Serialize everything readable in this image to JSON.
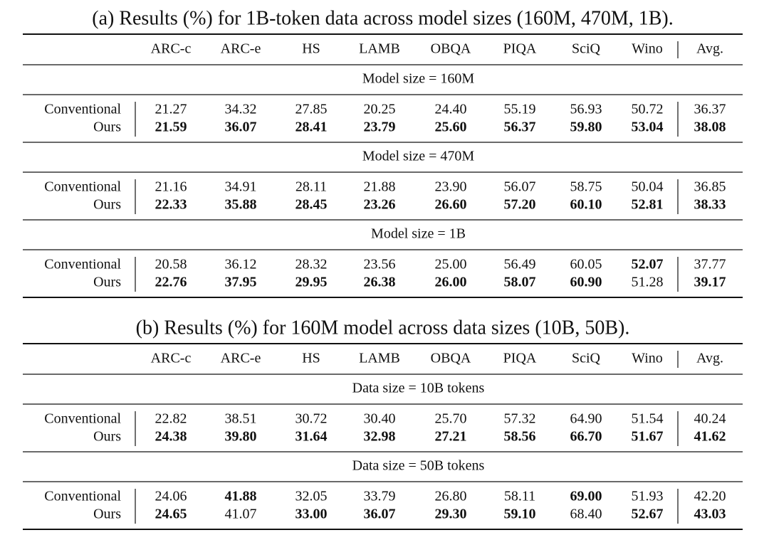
{
  "tables": [
    {
      "caption": "(a) Results (%) for 1B-token data across model sizes (160M, 470M, 1B).",
      "columns": [
        "ARC-c",
        "ARC-e",
        "HS",
        "LAMB",
        "OBQA",
        "PIQA",
        "SciQ",
        "Wino",
        "Avg."
      ],
      "sections": [
        {
          "label": "Model size = 160M",
          "rows": [
            {
              "label": "Conventional",
              "values": [
                "21.27",
                "34.32",
                "27.85",
                "20.25",
                "24.40",
                "55.19",
                "56.93",
                "50.72",
                "36.37"
              ],
              "bold": [
                false,
                false,
                false,
                false,
                false,
                false,
                false,
                false,
                false
              ]
            },
            {
              "label": "Ours",
              "values": [
                "21.59",
                "36.07",
                "28.41",
                "23.79",
                "25.60",
                "56.37",
                "59.80",
                "53.04",
                "38.08"
              ],
              "bold": [
                true,
                true,
                true,
                true,
                true,
                true,
                true,
                true,
                true
              ]
            }
          ]
        },
        {
          "label": "Model size = 470M",
          "rows": [
            {
              "label": "Conventional",
              "values": [
                "21.16",
                "34.91",
                "28.11",
                "21.88",
                "23.90",
                "56.07",
                "58.75",
                "50.04",
                "36.85"
              ],
              "bold": [
                false,
                false,
                false,
                false,
                false,
                false,
                false,
                false,
                false
              ]
            },
            {
              "label": "Ours",
              "values": [
                "22.33",
                "35.88",
                "28.45",
                "23.26",
                "26.60",
                "57.20",
                "60.10",
                "52.81",
                "38.33"
              ],
              "bold": [
                true,
                true,
                true,
                true,
                true,
                true,
                true,
                true,
                true
              ]
            }
          ]
        },
        {
          "label": "Model size = 1B",
          "rows": [
            {
              "label": "Conventional",
              "values": [
                "20.58",
                "36.12",
                "28.32",
                "23.56",
                "25.00",
                "56.49",
                "60.05",
                "52.07",
                "37.77"
              ],
              "bold": [
                false,
                false,
                false,
                false,
                false,
                false,
                false,
                true,
                false
              ]
            },
            {
              "label": "Ours",
              "values": [
                "22.76",
                "37.95",
                "29.95",
                "26.38",
                "26.00",
                "58.07",
                "60.90",
                "51.28",
                "39.17"
              ],
              "bold": [
                true,
                true,
                true,
                true,
                true,
                true,
                true,
                false,
                true
              ]
            }
          ]
        }
      ]
    },
    {
      "caption": "(b) Results (%) for 160M model across data sizes (10B, 50B).",
      "columns": [
        "ARC-c",
        "ARC-e",
        "HS",
        "LAMB",
        "OBQA",
        "PIQA",
        "SciQ",
        "Wino",
        "Avg."
      ],
      "sections": [
        {
          "label": "Data size = 10B tokens",
          "rows": [
            {
              "label": "Conventional",
              "values": [
                "22.82",
                "38.51",
                "30.72",
                "30.40",
                "25.70",
                "57.32",
                "64.90",
                "51.54",
                "40.24"
              ],
              "bold": [
                false,
                false,
                false,
                false,
                false,
                false,
                false,
                false,
                false
              ]
            },
            {
              "label": "Ours",
              "values": [
                "24.38",
                "39.80",
                "31.64",
                "32.98",
                "27.21",
                "58.56",
                "66.70",
                "51.67",
                "41.62"
              ],
              "bold": [
                true,
                true,
                true,
                true,
                true,
                true,
                true,
                true,
                true
              ]
            }
          ]
        },
        {
          "label": "Data size = 50B tokens",
          "rows": [
            {
              "label": "Conventional",
              "values": [
                "24.06",
                "41.88",
                "32.05",
                "33.79",
                "26.80",
                "58.11",
                "69.00",
                "51.93",
                "42.20"
              ],
              "bold": [
                false,
                true,
                false,
                false,
                false,
                false,
                true,
                false,
                false
              ]
            },
            {
              "label": "Ours",
              "values": [
                "24.65",
                "41.07",
                "33.00",
                "36.07",
                "29.30",
                "59.10",
                "68.40",
                "52.67",
                "43.03"
              ],
              "bold": [
                true,
                false,
                true,
                true,
                true,
                true,
                false,
                true,
                true
              ]
            }
          ]
        }
      ]
    }
  ]
}
